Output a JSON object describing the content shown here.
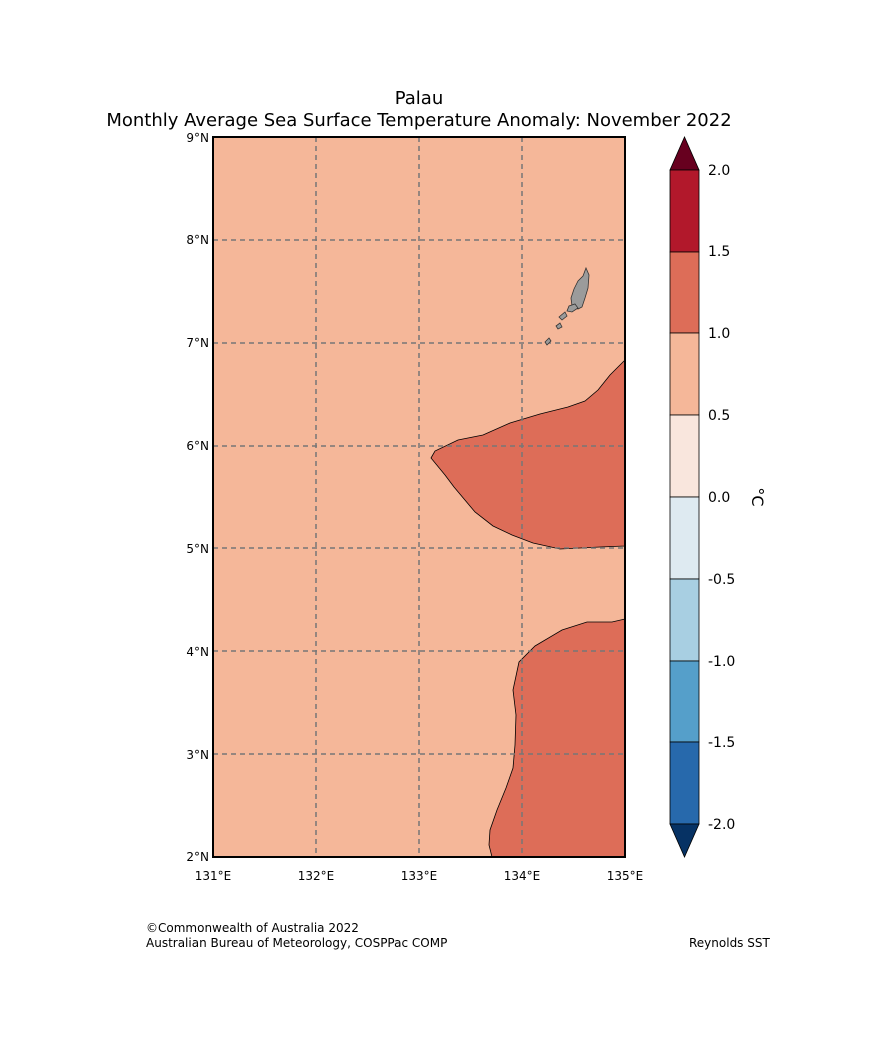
{
  "title": {
    "line1": "Palau",
    "line2": "Monthly Average Sea Surface Temperature Anomaly: November 2022"
  },
  "map": {
    "lat_labels": [
      "9°N",
      "8°N",
      "7°N",
      "6°N",
      "5°N",
      "4°N",
      "3°N",
      "2°N"
    ],
    "lon_labels": [
      "131°E",
      "132°E",
      "133°E",
      "134°E",
      "135°E"
    ],
    "background_anomaly_range": "0.5 to 1.0",
    "warm_patch_anomaly_range": "1.0 to 1.5",
    "land_name": "Palau islands"
  },
  "colorbar": {
    "unit_label": "°C",
    "tick_labels": [
      "2.0",
      "1.5",
      "1.0",
      "0.5",
      "0.0",
      "-0.5",
      "-1.0",
      "-1.5",
      "-2.0"
    ],
    "bins": [
      {
        "range": "above 2.0",
        "color": "#67001f"
      },
      {
        "range": "1.5 to 2.0",
        "color": "#b2182b"
      },
      {
        "range": "1.0 to 1.5",
        "color": "#dd6d58"
      },
      {
        "range": "0.5 to 1.0",
        "color": "#f5b799"
      },
      {
        "range": "0.0 to 0.5",
        "color": "#f9e6dd"
      },
      {
        "range": "-0.5 to 0.0",
        "color": "#deeaf1"
      },
      {
        "range": "-1.0 to -0.5",
        "color": "#a8cfe2"
      },
      {
        "range": "-1.5 to -1.0",
        "color": "#559fca"
      },
      {
        "range": "-2.0 to -1.5",
        "color": "#2769ac"
      },
      {
        "range": "below -2.0",
        "color": "#063264"
      }
    ]
  },
  "footer": {
    "copyright": "©Commonwealth of Australia 2022",
    "agency": "Australian Bureau of Meteorology, COSPPac COMP",
    "source": "Reynolds SST"
  }
}
